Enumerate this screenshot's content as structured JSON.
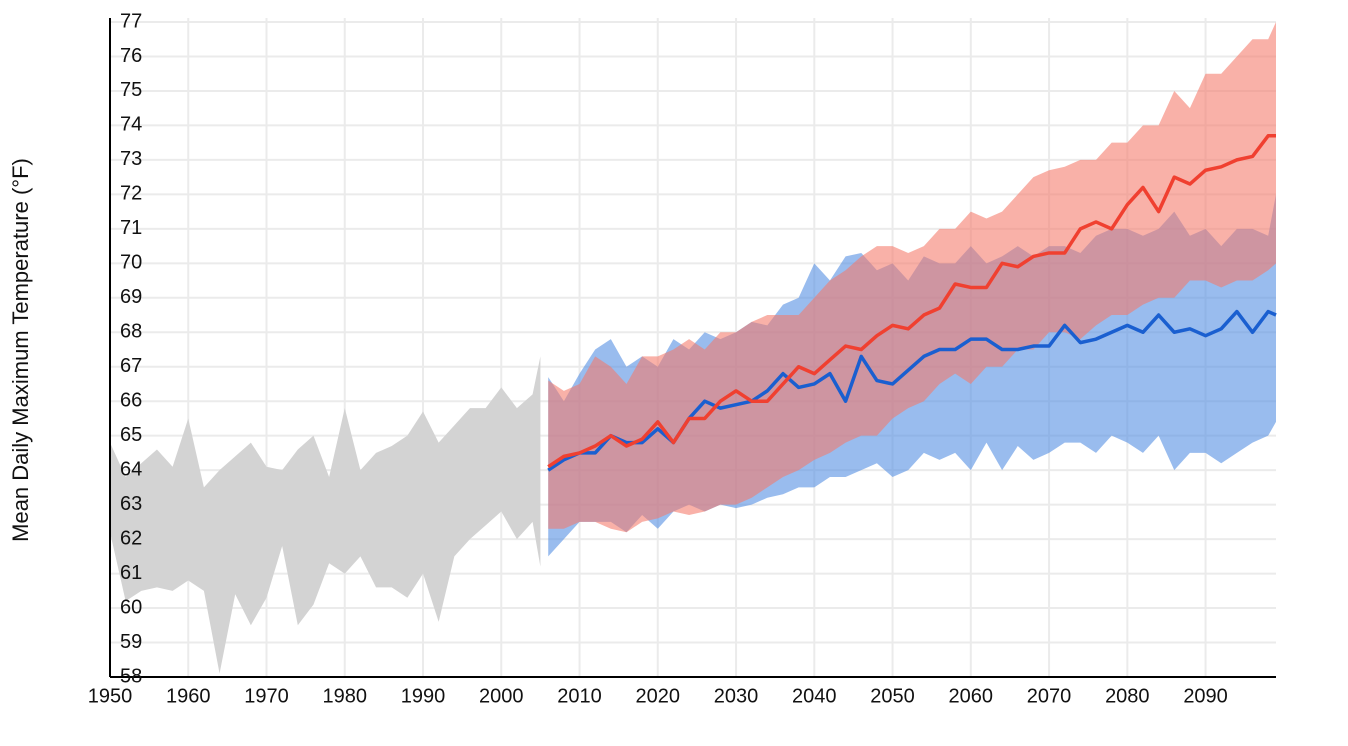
{
  "chart_data": {
    "type": "line",
    "y_label": "Mean Daily Maximum Temperature (°F)",
    "xlim": [
      1950,
      2099
    ],
    "ylim": [
      58,
      77
    ],
    "xticks": [
      1950,
      1960,
      1970,
      1980,
      1990,
      2000,
      2010,
      2020,
      2030,
      2040,
      2050,
      2060,
      2070,
      2080,
      2090
    ],
    "yticks": [
      58,
      59,
      60,
      61,
      62,
      63,
      64,
      65,
      66,
      67,
      68,
      69,
      70,
      71,
      72,
      73,
      74,
      75,
      76,
      77
    ],
    "grid": true,
    "bands": [
      {
        "color": "#d3d3d3",
        "x": [
          1950,
          1952,
          1954,
          1956,
          1958,
          1960,
          1962,
          1964,
          1966,
          1968,
          1970,
          1972,
          1974,
          1976,
          1978,
          1980,
          1982,
          1984,
          1986,
          1988,
          1990,
          1992,
          1994,
          1996,
          1998,
          2000,
          2002,
          2004,
          2005
        ],
        "high": [
          64.8,
          63.8,
          64.2,
          64.6,
          64.1,
          65.5,
          63.5,
          64.0,
          64.4,
          64.8,
          64.1,
          64.0,
          64.6,
          65.0,
          63.8,
          65.8,
          64.0,
          64.5,
          64.7,
          65.0,
          65.7,
          64.8,
          65.3,
          65.8,
          65.8,
          66.4,
          65.8,
          66.2,
          67.3
        ],
        "low": [
          62.2,
          60.2,
          60.5,
          60.6,
          60.5,
          60.8,
          60.5,
          58.1,
          60.4,
          59.5,
          60.3,
          61.8,
          59.5,
          60.1,
          61.3,
          61.0,
          61.5,
          60.6,
          60.6,
          60.3,
          61.0,
          59.6,
          61.5,
          62.0,
          62.4,
          62.8,
          62.0,
          62.5,
          61.2
        ]
      },
      {
        "color": "rgba(80,140,225,0.58)",
        "x": [
          2006,
          2008,
          2010,
          2012,
          2014,
          2016,
          2018,
          2020,
          2022,
          2024,
          2026,
          2028,
          2030,
          2032,
          2034,
          2036,
          2038,
          2040,
          2042,
          2044,
          2046,
          2048,
          2050,
          2052,
          2054,
          2056,
          2058,
          2060,
          2062,
          2064,
          2066,
          2068,
          2070,
          2072,
          2074,
          2076,
          2078,
          2080,
          2082,
          2084,
          2086,
          2088,
          2090,
          2092,
          2094,
          2096,
          2098,
          2099
        ],
        "high": [
          66.7,
          66.0,
          66.8,
          67.5,
          67.8,
          67.0,
          67.3,
          67.0,
          67.8,
          67.5,
          68.0,
          67.8,
          68.0,
          68.3,
          68.2,
          68.8,
          69.0,
          70.0,
          69.5,
          70.2,
          70.3,
          69.8,
          70.0,
          69.5,
          70.2,
          70.0,
          70.0,
          70.5,
          70.0,
          70.2,
          70.5,
          70.2,
          70.5,
          70.5,
          70.3,
          70.8,
          71.0,
          71.0,
          70.8,
          71.0,
          71.5,
          70.8,
          71.0,
          70.5,
          71.0,
          71.0,
          70.8,
          72.0
        ],
        "low": [
          61.5,
          62.0,
          62.5,
          62.5,
          62.5,
          62.2,
          62.7,
          62.3,
          62.8,
          63.0,
          62.8,
          63.0,
          62.9,
          63.0,
          63.2,
          63.3,
          63.5,
          63.5,
          63.8,
          63.8,
          64.0,
          64.2,
          63.8,
          64.0,
          64.5,
          64.3,
          64.5,
          64.0,
          64.8,
          64.0,
          64.7,
          64.3,
          64.5,
          64.8,
          64.8,
          64.5,
          65.0,
          64.8,
          64.5,
          65.0,
          64.0,
          64.5,
          64.5,
          64.2,
          64.5,
          64.8,
          65.0,
          65.4
        ]
      },
      {
        "color": "rgba(245,120,105,0.58)",
        "x": [
          2006,
          2008,
          2010,
          2012,
          2014,
          2016,
          2018,
          2020,
          2022,
          2024,
          2026,
          2028,
          2030,
          2032,
          2034,
          2036,
          2038,
          2040,
          2042,
          2044,
          2046,
          2048,
          2050,
          2052,
          2054,
          2056,
          2058,
          2060,
          2062,
          2064,
          2066,
          2068,
          2070,
          2072,
          2074,
          2076,
          2078,
          2080,
          2082,
          2084,
          2086,
          2088,
          2090,
          2092,
          2094,
          2096,
          2098,
          2099
        ],
        "high": [
          66.6,
          66.3,
          66.5,
          67.3,
          67.0,
          66.5,
          67.3,
          67.3,
          67.5,
          67.8,
          67.5,
          68.0,
          68.0,
          68.3,
          68.5,
          68.5,
          68.5,
          69.0,
          69.5,
          69.8,
          70.2,
          70.5,
          70.5,
          70.3,
          70.5,
          71.0,
          71.0,
          71.5,
          71.3,
          71.5,
          72.0,
          72.5,
          72.7,
          72.8,
          73.0,
          73.0,
          73.5,
          73.5,
          74.0,
          74.0,
          75.0,
          74.5,
          75.5,
          75.5,
          76.0,
          76.5,
          76.5,
          77.0
        ],
        "low": [
          62.3,
          62.3,
          62.5,
          62.5,
          62.3,
          62.2,
          62.5,
          62.6,
          62.8,
          62.7,
          62.8,
          63.0,
          63.0,
          63.2,
          63.5,
          63.8,
          64.0,
          64.3,
          64.5,
          64.8,
          65.0,
          65.0,
          65.5,
          65.8,
          66.0,
          66.5,
          66.8,
          66.5,
          67.0,
          67.0,
          67.5,
          67.5,
          68.0,
          68.0,
          67.8,
          68.2,
          68.5,
          68.5,
          68.8,
          69.0,
          69.0,
          69.5,
          69.5,
          69.3,
          69.5,
          69.5,
          69.8,
          70.0
        ]
      }
    ],
    "series": [
      {
        "color": "#1a5fd0",
        "x": [
          2006,
          2008,
          2010,
          2012,
          2014,
          2016,
          2018,
          2020,
          2022,
          2024,
          2026,
          2028,
          2030,
          2032,
          2034,
          2036,
          2038,
          2040,
          2042,
          2044,
          2046,
          2048,
          2050,
          2052,
          2054,
          2056,
          2058,
          2060,
          2062,
          2064,
          2066,
          2068,
          2070,
          2072,
          2074,
          2076,
          2078,
          2080,
          2082,
          2084,
          2086,
          2088,
          2090,
          2092,
          2094,
          2096,
          2098,
          2099
        ],
        "values": [
          64.0,
          64.3,
          64.5,
          64.5,
          65.0,
          64.8,
          64.8,
          65.2,
          64.8,
          65.5,
          66.0,
          65.8,
          65.9,
          66.0,
          66.3,
          66.8,
          66.4,
          66.5,
          66.8,
          66.0,
          67.3,
          66.6,
          66.5,
          66.9,
          67.3,
          67.5,
          67.5,
          67.8,
          67.8,
          67.5,
          67.5,
          67.6,
          67.6,
          68.2,
          67.7,
          67.8,
          68.0,
          68.2,
          68.0,
          68.5,
          68.0,
          68.1,
          67.9,
          68.1,
          68.6,
          68.0,
          68.6,
          68.5
        ]
      },
      {
        "color": "#f04030",
        "x": [
          2006,
          2008,
          2010,
          2012,
          2014,
          2016,
          2018,
          2020,
          2022,
          2024,
          2026,
          2028,
          2030,
          2032,
          2034,
          2036,
          2038,
          2040,
          2042,
          2044,
          2046,
          2048,
          2050,
          2052,
          2054,
          2056,
          2058,
          2060,
          2062,
          2064,
          2066,
          2068,
          2070,
          2072,
          2074,
          2076,
          2078,
          2080,
          2082,
          2084,
          2086,
          2088,
          2090,
          2092,
          2094,
          2096,
          2098,
          2099
        ],
        "values": [
          64.1,
          64.4,
          64.5,
          64.7,
          65.0,
          64.7,
          64.9,
          65.4,
          64.8,
          65.5,
          65.5,
          66.0,
          66.3,
          66.0,
          66.0,
          66.5,
          67.0,
          66.8,
          67.2,
          67.6,
          67.5,
          67.9,
          68.2,
          68.1,
          68.5,
          68.7,
          69.4,
          69.3,
          69.3,
          70.0,
          69.9,
          70.2,
          70.3,
          70.3,
          71.0,
          71.2,
          71.0,
          71.7,
          72.2,
          71.5,
          72.5,
          72.3,
          72.7,
          72.8,
          73.0,
          73.1,
          73.7,
          73.7
        ]
      }
    ]
  }
}
